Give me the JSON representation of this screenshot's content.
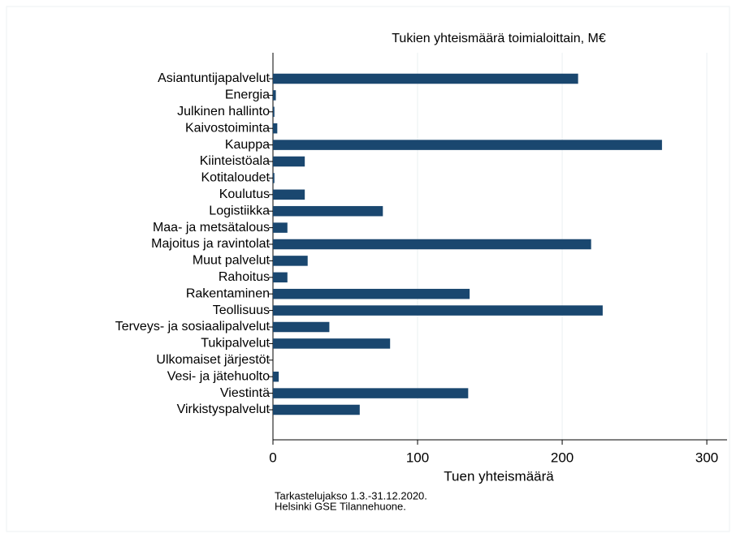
{
  "chart_data": {
    "type": "barh",
    "title": "Tukien yhteismäärä toimialoittain, M€",
    "xlabel": "Tuen yhteismäärä",
    "notes": [
      "Tarkastelujakso 1.3.-31.12.2020.",
      "Helsinki GSE Tilannehuone."
    ],
    "categories": [
      "Asiantuntijapalvelut",
      "Energia",
      "Julkinen hallinto",
      "Kaivostoiminta",
      "Kauppa",
      "Kiinteistöala",
      "Kotitaloudet",
      "Koulutus",
      "Logistiikka",
      "Maa- ja metsätalous",
      "Majoitus ja ravintolat",
      "Muut palvelut",
      "Rahoitus",
      "Rakentaminen",
      "Teollisuus",
      "Terveys- ja sosiaalipalvelut",
      "Tukipalvelut",
      "Ulkomaiset järjestöt",
      "Vesi- ja jätehuolto",
      "Viestintä",
      "Virkistyspalvelut"
    ],
    "values": [
      211,
      2,
      1,
      3,
      269,
      22,
      1,
      22,
      76,
      10,
      220,
      24,
      10,
      136,
      228,
      39,
      81,
      0,
      4,
      135,
      60
    ],
    "color": "#1a476f",
    "xlim": [
      0,
      314
    ],
    "xticks": [
      0,
      100,
      200,
      300
    ],
    "grid": true
  }
}
